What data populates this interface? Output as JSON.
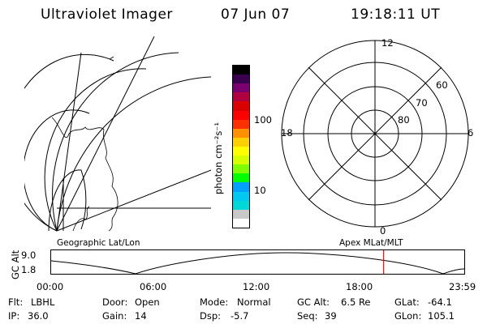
{
  "header": {
    "title": "Ultraviolet Imager",
    "date": "07 Jun 07",
    "time": "19:18:11 UT"
  },
  "colorbar": {
    "unit_label": "photon cm⁻²s⁻¹",
    "tick_labels": [
      "100",
      "10"
    ],
    "colors": [
      "#ffffff",
      "#c8c8c8",
      "#00d8d8",
      "#00c8f0",
      "#00a0ff",
      "#00ff00",
      "#80ff00",
      "#d8ff00",
      "#ffff00",
      "#ffd000",
      "#ff9000",
      "#ff3000",
      "#ff0000",
      "#d80000",
      "#b00040",
      "#7a0070",
      "#3a0050",
      "#000000"
    ]
  },
  "left_map": {
    "label": "Geographic Lat/Lon"
  },
  "polar_plot": {
    "label": "Apex MLat/MLT",
    "hour_labels": {
      "top": "12",
      "right": "6",
      "bottom": "0",
      "left": "18"
    },
    "lat_labels": [
      "60",
      "70",
      "80"
    ]
  },
  "altitude_strip": {
    "axis_label": "GC Alt",
    "y_ticks": [
      "9.0",
      "1.8"
    ],
    "x_ticks": [
      "00:00",
      "06:00",
      "12:00",
      "18:00",
      "23:59"
    ],
    "marker_time": "19:18",
    "marker_color": "#e00000"
  },
  "info": {
    "flt_label": "Flt:",
    "flt_value": "LBHL",
    "ip_label": "IP:",
    "ip_value": "36.0",
    "door_label": "Door:",
    "door_value": "Open",
    "gain_label": "Gain:",
    "gain_value": "14",
    "mode_label": "Mode:",
    "mode_value": "Normal",
    "dsp_label": "Dsp:",
    "dsp_value": "-5.7",
    "gcalt_label": "GC Alt:",
    "gcalt_value": "6.5 Re",
    "seq_label": "Seq:",
    "seq_value": "39",
    "glat_label": "GLat:",
    "glat_value": "-64.1",
    "glon_label": "GLon:",
    "glon_value": "105.1"
  }
}
